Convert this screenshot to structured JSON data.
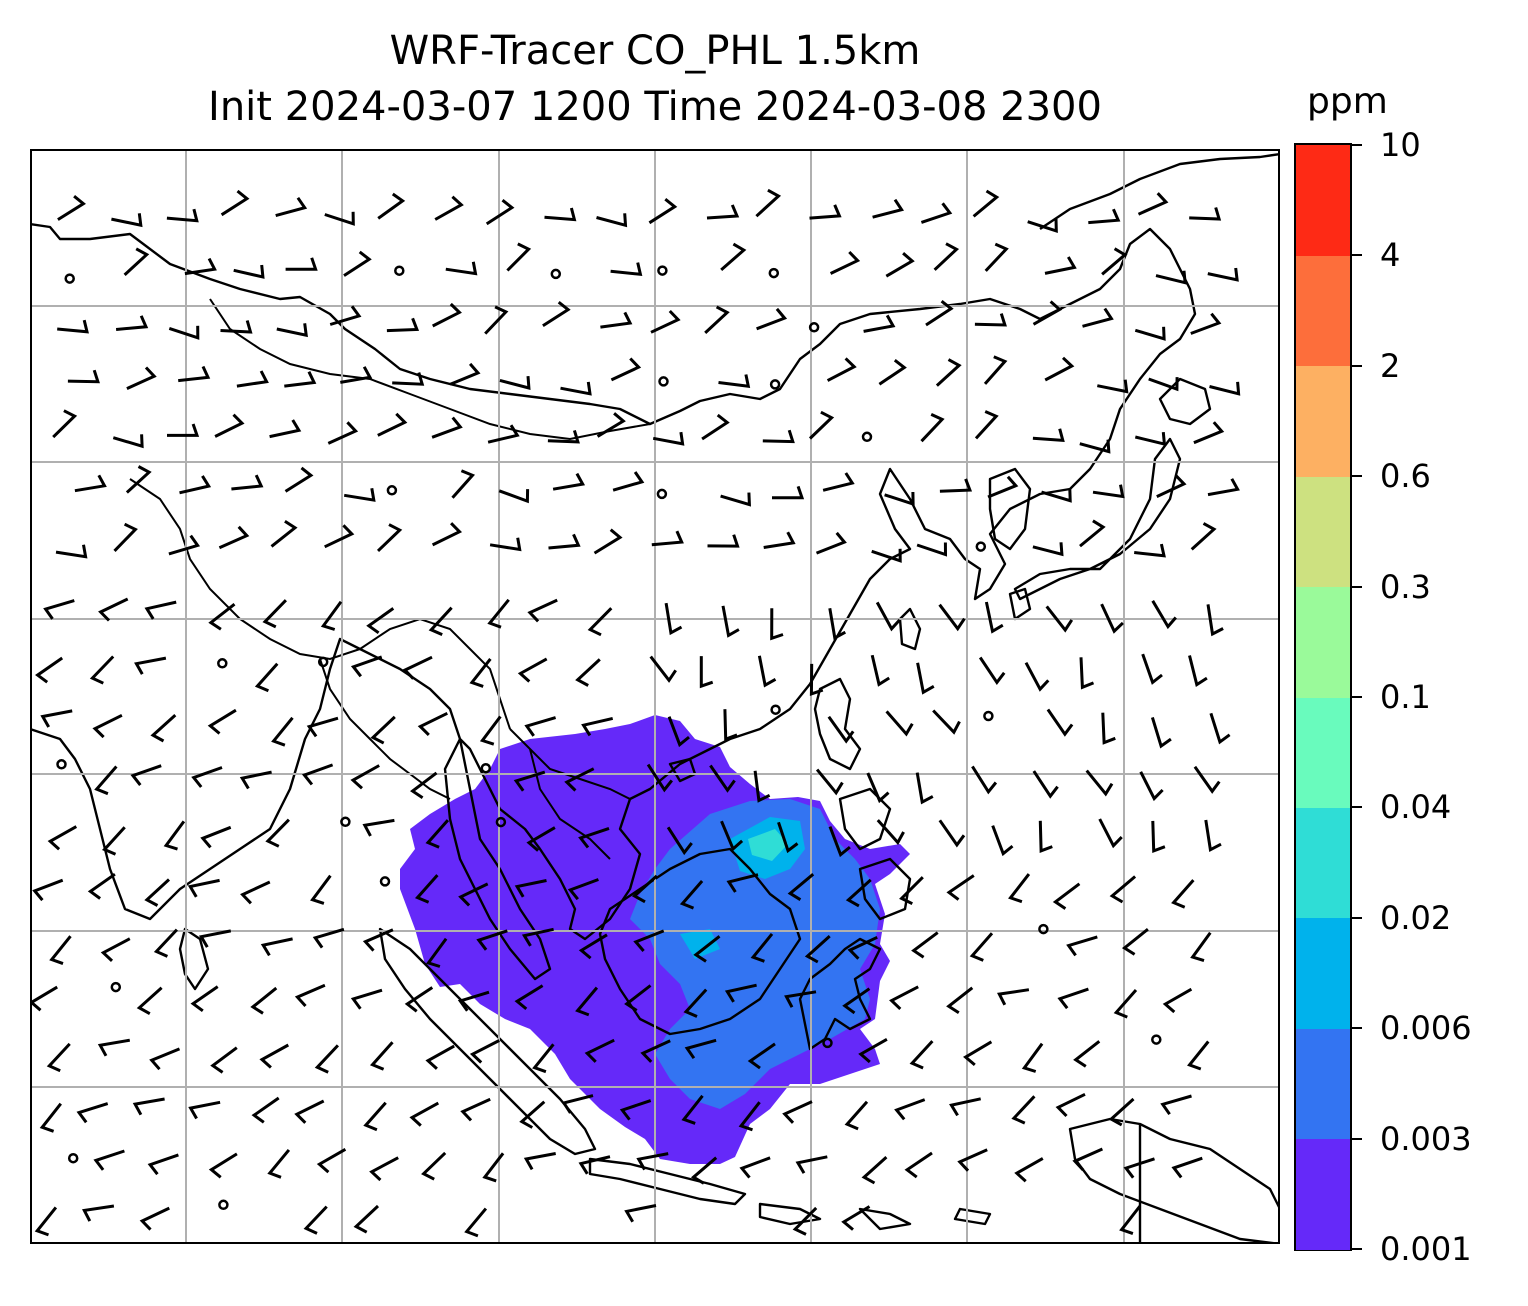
{
  "title": {
    "line1": "WRF-Tracer CO_PHL 1.5km",
    "line2": "Init 2024-03-07 1200 Time 2024-03-08 2300"
  },
  "colorbar": {
    "unit": "ppm",
    "levels": [
      "0.001",
      "0.003",
      "0.006",
      "0.02",
      "0.04",
      "0.1",
      "0.3",
      "0.6",
      "2",
      "4",
      "10"
    ],
    "colors": [
      "#6529f9",
      "#3374f2",
      "#00b2ec",
      "#2fddd6",
      "#69fbbd",
      "#9afa9a",
      "#cde180",
      "#fdb062",
      "#fd6e3b",
      "#fe2a15"
    ]
  },
  "map": {
    "gridlines": true,
    "region": "East and Southeast Asia",
    "plume_colors": {
      "low": "#6529f9",
      "mid": "#3374f2",
      "high": "#00b2ec",
      "peak": "#2fddd6"
    }
  }
}
